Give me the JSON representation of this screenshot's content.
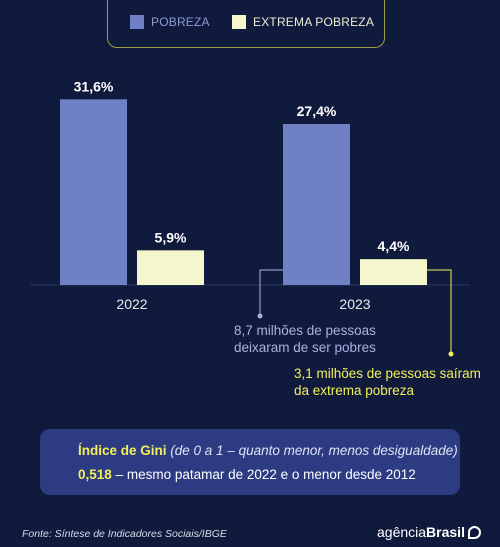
{
  "colors": {
    "background": "#101a3c",
    "pobreza": "#7080c4",
    "extrema": "#f5f6cc",
    "accent": "#f2f05a",
    "box": "#2d3b83"
  },
  "chart_data": {
    "type": "bar",
    "categories": [
      "2022",
      "2023"
    ],
    "series": [
      {
        "name": "POBREZA",
        "values": [
          31.6,
          27.4
        ],
        "labels": [
          "31,6%",
          "27,4%"
        ]
      },
      {
        "name": "EXTREMA POBREZA",
        "values": [
          5.9,
          4.4
        ],
        "labels": [
          "5,9%",
          "4,4%"
        ]
      }
    ],
    "ylim": [
      0,
      40
    ],
    "legend_position": "top"
  },
  "annotations": {
    "pobres": [
      "8,7 milhões de pessoas",
      "deixaram de ser pobres"
    ],
    "extrema": [
      "3,1 milhões de pessoas saíram",
      "da extrema pobreza"
    ]
  },
  "gini": {
    "title": "Índice de Gini",
    "subtitle": "(de 0 a 1 – quanto menor, menos desigualdade)",
    "value": "0,518",
    "text": "– mesmo patamar de 2022 e o menor desde 2012"
  },
  "footer": {
    "source": "Fonte:  Síntese de Indicadores Sociais/IBGE",
    "logo_prefix": "agência",
    "logo_brand": "Brasil",
    "logo_icon": "agencia-brasil-logo-icon"
  }
}
